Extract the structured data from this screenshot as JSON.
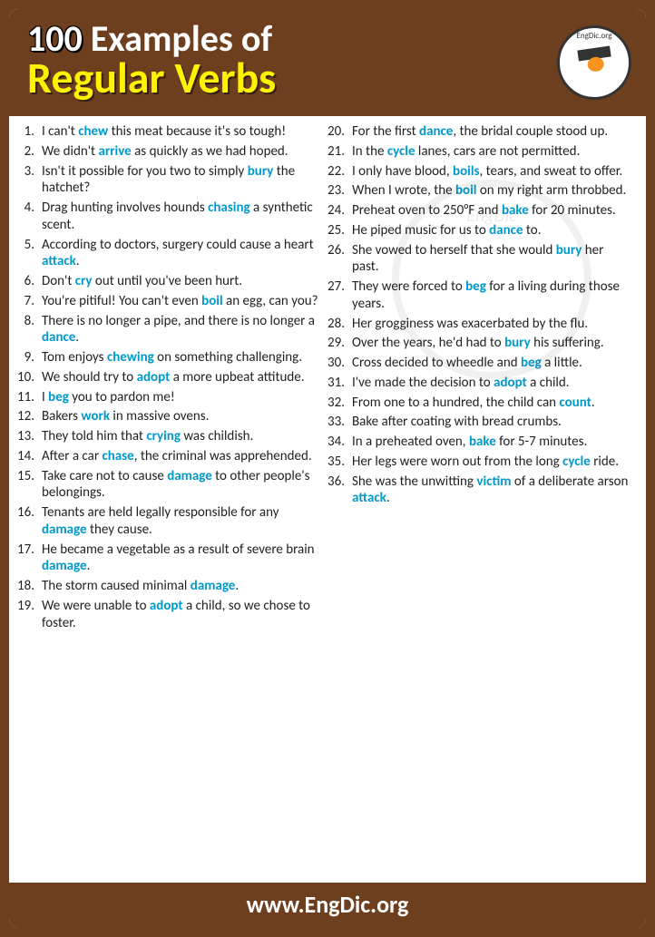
{
  "header": {
    "title_line1_num": "100",
    "title_line1_rest": " Examples of",
    "title_line2": "Regular Verbs",
    "logo_text": "EngDic.org",
    "title_bg": "#6d3f1f",
    "title_color": "#ffffff",
    "subtitle_color": "#fef200"
  },
  "footer": {
    "text": "www.EngDic.org",
    "bg": "#6d3f1f",
    "color": "#ffffff"
  },
  "highlight_color": "#0099cc",
  "text_color": "#222222",
  "watermark": "EngDic",
  "left": [
    {
      "n": "1.",
      "parts": [
        "I can't ",
        {
          "h": "chew"
        },
        " this meat because it's so tough!"
      ]
    },
    {
      "n": "2.",
      "parts": [
        "We didn't ",
        {
          "h": "arrive"
        },
        " as quickly as we had hoped."
      ]
    },
    {
      "n": "3.",
      "parts": [
        "Isn't it possible for you two to simply ",
        {
          "h": "bury"
        },
        " the hatchet?"
      ]
    },
    {
      "n": "4.",
      "parts": [
        "Drag hunting involves hounds ",
        {
          "h": "chasing"
        },
        " a synthetic scent."
      ]
    },
    {
      "n": "5.",
      "parts": [
        "According to doctors, surgery could cause a heart ",
        {
          "h": "attack"
        },
        "."
      ]
    },
    {
      "n": "6.",
      "parts": [
        "Don't ",
        {
          "h": "cry"
        },
        " out until you've been hurt."
      ]
    },
    {
      "n": "7.",
      "parts": [
        "You're pitiful! You can't even ",
        {
          "h": "boil"
        },
        " an egg, can you?"
      ]
    },
    {
      "n": "8.",
      "parts": [
        "There is no longer a pipe, and there is no longer a ",
        {
          "h": "dance"
        },
        "."
      ]
    },
    {
      "n": "9.",
      "parts": [
        "Tom enjoys ",
        {
          "h": "chewing"
        },
        " on something challenging."
      ]
    },
    {
      "n": "10.",
      "parts": [
        "We should try to ",
        {
          "h": "adopt"
        },
        " a more upbeat attitude."
      ]
    },
    {
      "n": "11.",
      "parts": [
        "I ",
        {
          "h": "beg"
        },
        " you to pardon me!"
      ]
    },
    {
      "n": "12.",
      "parts": [
        "Bakers ",
        {
          "h": "work"
        },
        " in massive ovens."
      ]
    },
    {
      "n": "13.",
      "parts": [
        "They told him that ",
        {
          "h": "crying"
        },
        " was childish."
      ]
    },
    {
      "n": "14.",
      "parts": [
        "After a car ",
        {
          "h": "chase"
        },
        ", the criminal was apprehended."
      ]
    },
    {
      "n": "15.",
      "parts": [
        "Take care not to cause ",
        {
          "h": "damage"
        },
        " to other people's belongings."
      ]
    },
    {
      "n": "16.",
      "parts": [
        "Tenants are held legally responsible for any ",
        {
          "h": "damage"
        },
        " they cause."
      ]
    },
    {
      "n": "17.",
      "parts": [
        "He became a vegetable as a result of severe brain ",
        {
          "h": "damage"
        },
        "."
      ]
    },
    {
      "n": "18.",
      "parts": [
        "The storm caused minimal ",
        {
          "h": "damage"
        },
        "."
      ]
    },
    {
      "n": "19.",
      "parts": [
        "We were unable to ",
        {
          "h": "adopt"
        },
        " a child, so we chose to foster."
      ]
    }
  ],
  "right": [
    {
      "n": "20.",
      "parts": [
        "For the first ",
        {
          "h": "dance"
        },
        ", the bridal couple stood up."
      ]
    },
    {
      "n": "21.",
      "parts": [
        "In the ",
        {
          "h": "cycle"
        },
        " lanes, cars are not permitted."
      ]
    },
    {
      "n": "22.",
      "parts": [
        "I only have blood, ",
        {
          "h": "boils"
        },
        ", tears, and sweat to offer."
      ]
    },
    {
      "n": "23.",
      "parts": [
        "When I wrote, the ",
        {
          "h": "boil"
        },
        " on my right arm throbbed."
      ]
    },
    {
      "n": "24.",
      "parts": [
        "Preheat oven to 250°F and ",
        {
          "h": "bake"
        },
        " for 20 minutes."
      ]
    },
    {
      "n": "25.",
      "parts": [
        "He piped music for us to ",
        {
          "h": "dance"
        },
        " to."
      ]
    },
    {
      "n": "26.",
      "parts": [
        "She vowed to herself that she would ",
        {
          "h": "bury"
        },
        " her past."
      ]
    },
    {
      "n": "27.",
      "parts": [
        "They were forced to ",
        {
          "h": "beg"
        },
        " for a living during those years."
      ]
    },
    {
      "n": "28.",
      "parts": [
        "Her grogginess was exacerbated by the flu."
      ]
    },
    {
      "n": "29.",
      "parts": [
        "Over the years, he'd had to ",
        {
          "h": "bury"
        },
        " his suffering."
      ]
    },
    {
      "n": "30.",
      "parts": [
        "Cross decided to wheedle and ",
        {
          "h": "beg"
        },
        " a little."
      ]
    },
    {
      "n": "31.",
      "parts": [
        "I've made the decision to ",
        {
          "h": "adopt"
        },
        " a child."
      ]
    },
    {
      "n": "32.",
      "parts": [
        "From one to a hundred, the child can ",
        {
          "h": "count"
        },
        "."
      ]
    },
    {
      "n": "33.",
      "parts": [
        "Bake after coating with bread crumbs."
      ]
    },
    {
      "n": "34.",
      "parts": [
        "In a preheated oven, ",
        {
          "h": "bake"
        },
        " for 5-7 minutes."
      ]
    },
    {
      "n": "35.",
      "parts": [
        "Her legs were worn out from the long ",
        {
          "h": "cycle"
        },
        " ride."
      ]
    },
    {
      "n": "36.",
      "parts": [
        "She was the unwitting ",
        {
          "h": "victim"
        },
        " of a deliberate arson ",
        {
          "h": "attack"
        },
        "."
      ]
    }
  ]
}
